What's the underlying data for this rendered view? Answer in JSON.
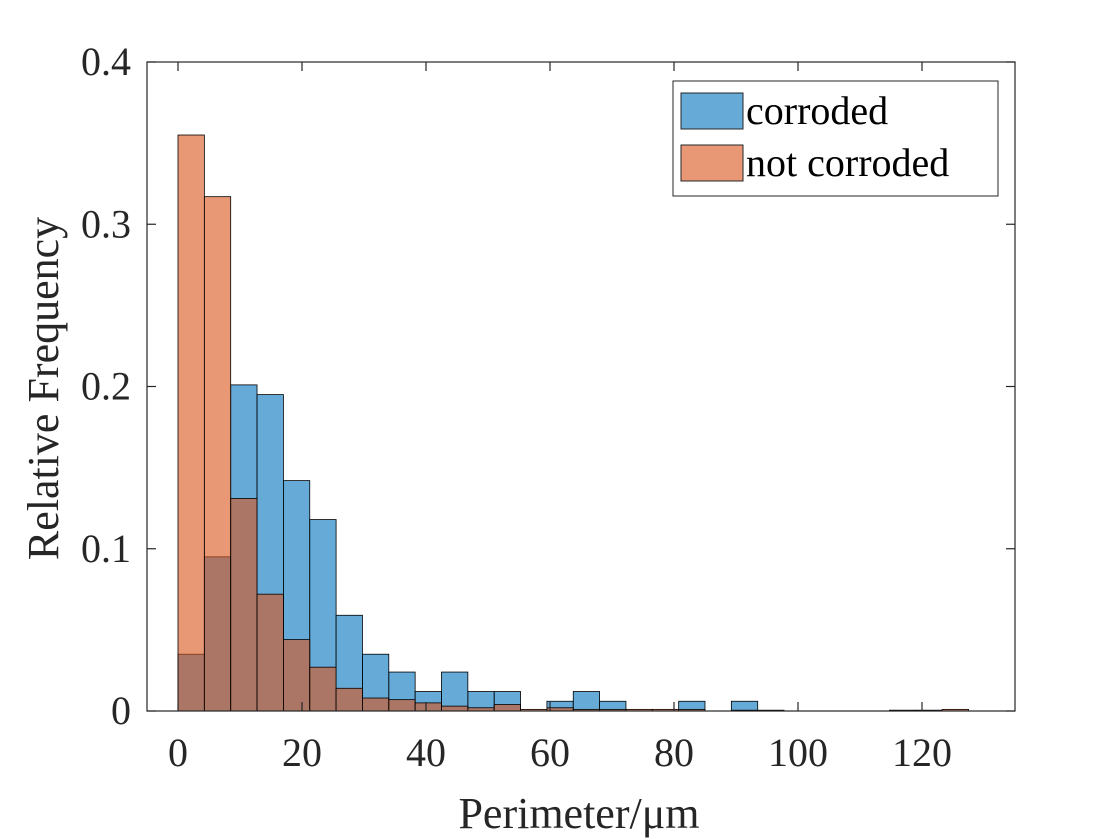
{
  "chart_data": {
    "type": "bar",
    "subtype": "overlapping-histogram",
    "title": "",
    "xlabel": "Perimeter/μm",
    "ylabel": "Relative Frequency",
    "xlim": [
      -5,
      135
    ],
    "ylim": [
      0,
      0.4
    ],
    "xticks": [
      0,
      20,
      40,
      60,
      80,
      100,
      120
    ],
    "yticks": [
      0,
      0.1,
      0.2,
      0.3,
      0.4
    ],
    "xtick_labels": [
      "0",
      "20",
      "40",
      "60",
      "80",
      "100",
      "120"
    ],
    "ytick_labels": [
      "0",
      "0.1",
      "0.2",
      "0.3",
      "0.4"
    ],
    "bin_width": 4.25,
    "bin_start": 0,
    "grid": false,
    "legend_position": "top-right",
    "series": [
      {
        "name": "corroded",
        "color": "#0072BD",
        "face_alpha": 0.6,
        "values": [
          0.035,
          0.095,
          0.201,
          0.195,
          0.142,
          0.118,
          0.059,
          0.035,
          0.024,
          0.012,
          0.024,
          0.012,
          0.012,
          0.0,
          0.006,
          0.012,
          0.006,
          0.0,
          0.0,
          0.006,
          0.0,
          0.006,
          0.0,
          0.0,
          0.0,
          0.0,
          0.0,
          0.0,
          0.0,
          0.0
        ]
      },
      {
        "name": "not corroded",
        "color": "#D95319",
        "face_alpha": 0.6,
        "values": [
          0.355,
          0.317,
          0.131,
          0.072,
          0.044,
          0.027,
          0.014,
          0.008,
          0.007,
          0.005,
          0.003,
          0.002,
          0.004,
          0.001,
          0.002,
          0.001,
          0.001,
          0.001,
          0.001,
          0.001,
          0.0,
          0.0005,
          0.0005,
          0.0,
          0.0,
          0.0,
          0.0,
          0.0005,
          0.0005,
          0.001
        ]
      }
    ]
  }
}
